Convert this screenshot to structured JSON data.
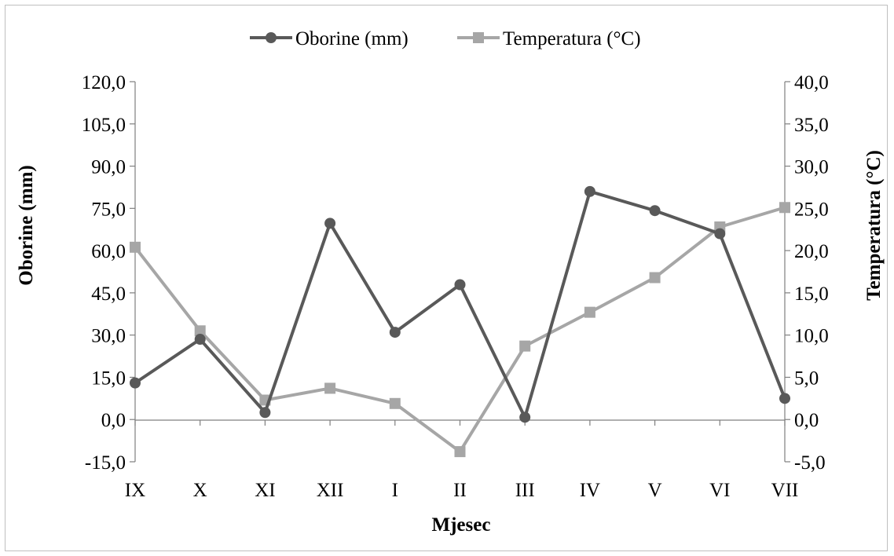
{
  "chart_data": {
    "type": "line",
    "title": "",
    "xlabel": "Mjesec",
    "ylabel": "Oborine (mm)",
    "y2label": "Temperatura (°C)",
    "categories": [
      "IX",
      "X",
      "XI",
      "XII",
      "I",
      "II",
      "III",
      "IV",
      "V",
      "VI",
      "VII"
    ],
    "ylim": [
      -15,
      120
    ],
    "y2lim": [
      -5,
      40
    ],
    "yticks": [
      "120,0",
      "105,0",
      "90,0",
      "75,0",
      "60,0",
      "45,0",
      "30,0",
      "15,0",
      "0,0",
      "-15,0"
    ],
    "y2ticks": [
      "40,0",
      "35,0",
      "30,0",
      "25,0",
      "20,0",
      "15,0",
      "10,0",
      "5,0",
      "0,0",
      "-5,0"
    ],
    "legend_position": "top",
    "grid": false,
    "series": [
      {
        "name": "Oborine (mm)",
        "axis": "left",
        "color": "#595959",
        "marker": "circle",
        "values": [
          13.0,
          28.5,
          2.5,
          69.7,
          31.0,
          47.9,
          0.8,
          81.0,
          74.2,
          66.0,
          7.5
        ]
      },
      {
        "name": "Temperatura (°C)",
        "axis": "right",
        "color": "#a6a6a6",
        "marker": "square",
        "values": [
          20.4,
          10.5,
          2.3,
          3.7,
          1.9,
          -3.8,
          8.7,
          12.7,
          16.8,
          22.8,
          25.1
        ]
      }
    ]
  }
}
